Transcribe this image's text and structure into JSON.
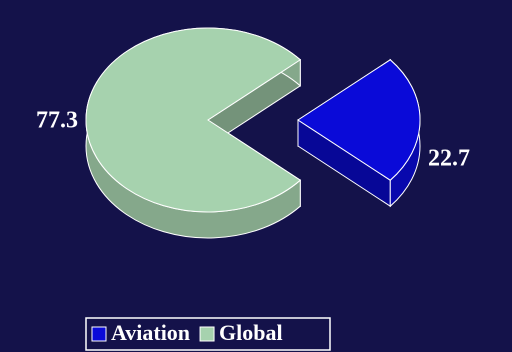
{
  "chart_data": {
    "type": "pie",
    "categories": [
      "Aviation",
      "Global"
    ],
    "values": [
      22.7,
      77.3
    ],
    "colors": [
      "#0a0ad8",
      "#a6d2ae"
    ],
    "legend": "bottom"
  }
}
